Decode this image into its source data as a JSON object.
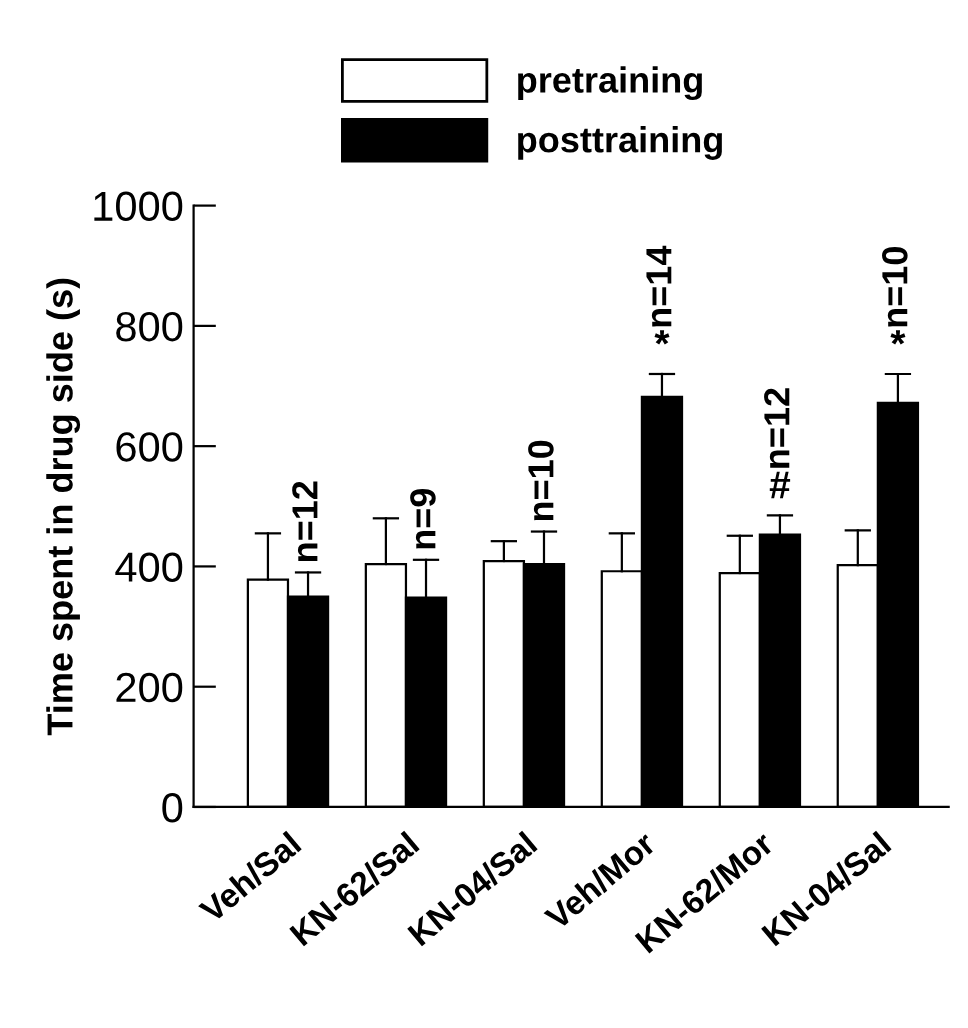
{
  "chart_data": {
    "type": "bar",
    "ylabel": "Time spent in drug side (s)",
    "categories": [
      "Veh/Sal",
      "KN-62/Sal",
      "KN-04/Sal",
      "Veh/Mor",
      "KN-62/Mor",
      "KN-04/Sal"
    ],
    "series": [
      {
        "name": "pretraining",
        "color": "#ffffff",
        "values": [
          378,
          404,
          409,
          392,
          389,
          402
        ],
        "errors": [
          [
            378,
            455
          ],
          [
            404,
            480
          ],
          [
            409,
            442
          ],
          [
            392,
            455
          ],
          [
            389,
            451
          ],
          [
            402,
            460
          ]
        ]
      },
      {
        "name": "posttraining",
        "color": "#000000",
        "values": [
          350,
          348,
          404,
          682,
          453,
          672
        ],
        "errors": [
          [
            350,
            390
          ],
          [
            348,
            411
          ],
          [
            404,
            458
          ],
          [
            682,
            720
          ],
          [
            453,
            485
          ],
          [
            672,
            720
          ]
        ]
      }
    ],
    "annotations": [
      {
        "text": "n=12",
        "x": "Veh/Sal",
        "y": 390
      },
      {
        "text": "n=9",
        "x": "KN-62/Sal",
        "y": 411
      },
      {
        "text": "n=10",
        "x": "KN-04/Sal",
        "y": 458
      },
      {
        "text": "*",
        "x": "Veh/Mor",
        "y": 720
      },
      {
        "text": "n=14",
        "x": "Veh/Mor",
        "y": 720
      },
      {
        "text": "#",
        "x": "KN-62/Mor",
        "y": 485
      },
      {
        "text": "n=12",
        "x": "KN-62/Mor",
        "y": 485
      },
      "*",
      "n=10"
    ],
    "ylim": [
      0,
      1000
    ],
    "yticks": [
      0,
      200,
      400,
      600,
      800,
      1000
    ],
    "grid": false,
    "legend": "top"
  }
}
